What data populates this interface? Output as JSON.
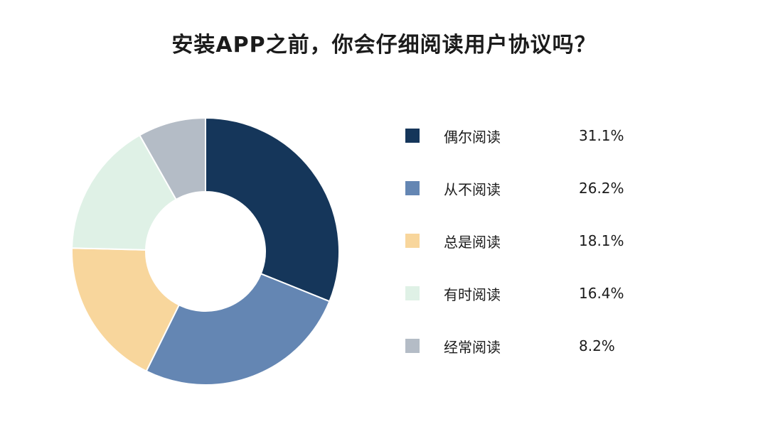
{
  "title": "安装APP之前，你会仔细阅读用户协议吗？",
  "chart_data": {
    "type": "pie",
    "title": "安装APP之前，你会仔细阅读用户协议吗？",
    "labels": [
      "偶尔阅读",
      "从不阅读",
      "总是阅读",
      "有时阅读",
      "经常阅读"
    ],
    "values": [
      31.1,
      26.2,
      18.1,
      16.4,
      8.2
    ],
    "value_labels": [
      "31.1%",
      "26.2%",
      "18.1%",
      "16.4%",
      "8.2%"
    ],
    "unit": "%",
    "colors": [
      "#15365a",
      "#6486b3",
      "#f8d69c",
      "#dff1e6",
      "#b4bcc6"
    ],
    "donut": true,
    "legend_position": "right"
  }
}
